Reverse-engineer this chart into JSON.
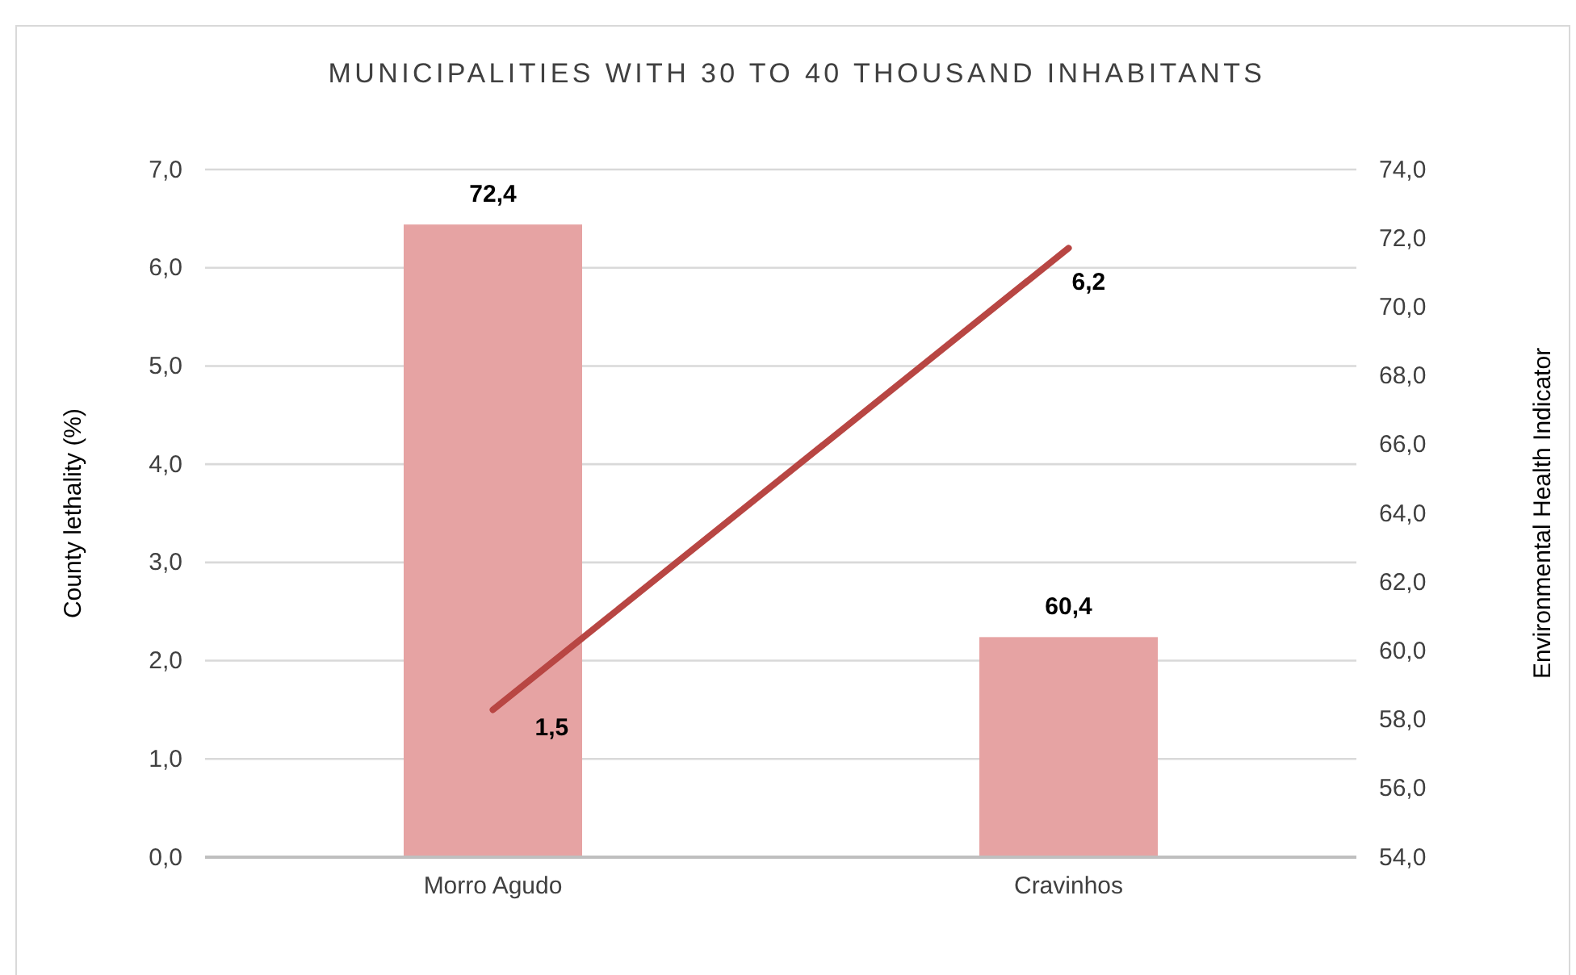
{
  "chart_data": {
    "type": "bar",
    "title": "MUNICIPALITIES WITH 30 TO 40 THOUSAND INHABITANTS",
    "ylabel": "County lethality (%)",
    "y2label": "Environmental Health Indicator",
    "categories": [
      "Morro Agudo",
      "Cravinhos"
    ],
    "series": [
      {
        "type": "bar",
        "axis": "y2",
        "color": "#e6a3a3",
        "values": [
          72.4,
          60.4
        ],
        "value_labels": [
          "72,4",
          "60,4"
        ]
      },
      {
        "type": "line",
        "axis": "y",
        "color": "#b84643",
        "values": [
          1.5,
          6.2
        ],
        "value_labels": [
          "1,5",
          "6,2"
        ]
      }
    ],
    "ylim": [
      0,
      7
    ],
    "yticks": [
      {
        "value": 0,
        "label": "0,0"
      },
      {
        "value": 1,
        "label": "1,0"
      },
      {
        "value": 2,
        "label": "2,0"
      },
      {
        "value": 3,
        "label": "3,0"
      },
      {
        "value": 4,
        "label": "4,0"
      },
      {
        "value": 5,
        "label": "5,0"
      },
      {
        "value": 6,
        "label": "6,0"
      },
      {
        "value": 7,
        "label": "7,0"
      }
    ],
    "y2lim": [
      54,
      74
    ],
    "y2ticks": [
      {
        "value": 54,
        "label": "54,0"
      },
      {
        "value": 56,
        "label": "56,0"
      },
      {
        "value": 58,
        "label": "58,0"
      },
      {
        "value": 60,
        "label": "60,0"
      },
      {
        "value": 62,
        "label": "62,0"
      },
      {
        "value": 64,
        "label": "64,0"
      },
      {
        "value": 66,
        "label": "66,0"
      },
      {
        "value": 68,
        "label": "68,0"
      },
      {
        "value": 70,
        "label": "70,0"
      },
      {
        "value": 72,
        "label": "72,0"
      },
      {
        "value": 74,
        "label": "74,0"
      }
    ],
    "grid": "y",
    "line_style": "solid",
    "marker": "none"
  }
}
